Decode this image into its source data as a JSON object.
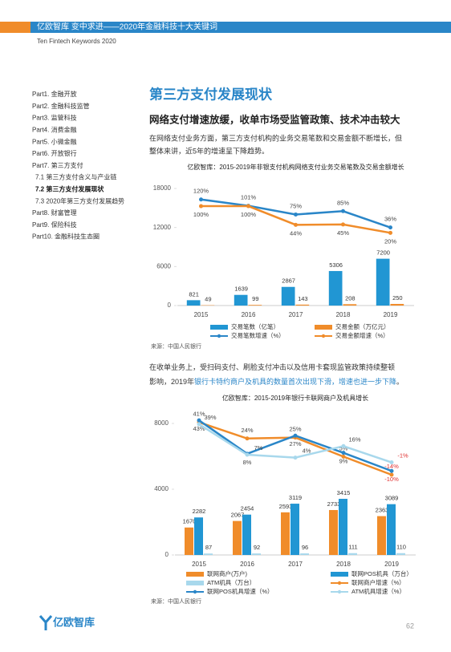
{
  "header": {
    "title": "亿欧智库  变中求进——2020年金融科技十大关键词",
    "subtitle": "Ten Fintech Keywords 2020"
  },
  "nav": [
    {
      "label": "Part1. 金融开放"
    },
    {
      "label": "Part2. 金融科技监管"
    },
    {
      "label": "Part3. 监管科技"
    },
    {
      "label": "Part4. 消费金融"
    },
    {
      "label": "Part5. 小微金融"
    },
    {
      "label": "Part6. 开放银行"
    },
    {
      "label": "Part7. 第三方支付"
    },
    {
      "label": "7.1 第三方支付含义与产业链",
      "sub": true
    },
    {
      "label": "7.2 第三方支付发展现状",
      "sub": true,
      "current": true
    },
    {
      "label": "7.3 2020年第三方支付发展趋势",
      "sub": true
    },
    {
      "label": "Part8. 财富管理"
    },
    {
      "label": "Part9. 保险科技"
    },
    {
      "label": "Part10. 金融科技生态圈"
    }
  ],
  "section": {
    "title": "第三方支付发展现状",
    "heading": "网络支付增速放缓，收单市场受监管政策、技术冲击较大"
  },
  "paragraph1": [
    "在网络支付业务方面，第三方支付机构的业务交易笔数和交易金额不断增长，但",
    "整体来讲，近5年的增速呈下降趋势。"
  ],
  "paragraph2": [
    [
      {
        "text": "在收单业务上，受扫码支付、刷脸支付冲击以及信用卡套现监管政策持续整顿"
      }
    ],
    [
      {
        "text": "影响，2019年"
      },
      {
        "text": "银行卡特约商户及机具的数量首次出现下滑，增速也进一步下降",
        "highlight": true
      },
      {
        "text": "。"
      }
    ]
  ],
  "footer": {
    "logo": "亿欧智库",
    "page": "62"
  },
  "chart_data": [
    {
      "type": "bar",
      "title": "亿欧智库：2015-2019年非银支付机构网络支付业务交易笔数及交易金额增长",
      "source": "来源：中国人民银行",
      "categories": [
        "2015",
        "2016",
        "2017",
        "2018",
        "2019"
      ],
      "ylim": [
        0,
        18000
      ],
      "yticks": [
        0,
        6000,
        12000,
        18000
      ],
      "y2lim": [
        -198,
        153
      ],
      "series": [
        {
          "name": "交易笔数（亿笔）",
          "type": "bar",
          "color": "#2196d3",
          "values": [
            821,
            1639,
            2867,
            5306,
            7200
          ]
        },
        {
          "name": "交易金额（万亿元）",
          "type": "bar",
          "color": "#f08c2a",
          "values": [
            49,
            99,
            143,
            208,
            250
          ]
        },
        {
          "name": "交易笔数增速（%）",
          "type": "line",
          "axis": "y2",
          "color": "#2a86c8",
          "values": [
            120,
            101,
            75,
            85,
            36
          ],
          "value_labels": [
            "120%",
            "101%",
            "75%",
            "85%",
            "36%"
          ]
        },
        {
          "name": "交易金额增速（%）",
          "type": "line",
          "axis": "y2",
          "color": "#f08c2a",
          "values": [
            100,
            100,
            44,
            45,
            20
          ],
          "value_labels": [
            "100%",
            "100%",
            "44%",
            "45%",
            "20%"
          ]
        }
      ]
    },
    {
      "type": "bar",
      "title": "亿欧智库：2015-2019年银行卡联网商户及机具增长",
      "source": "来源：中国人民银行",
      "categories": [
        "2015",
        "2016",
        "2017",
        "2018",
        "2019"
      ],
      "ylim": [
        0,
        9000
      ],
      "yticks": [
        0,
        4000,
        8000
      ],
      "y2lim": [
        -98,
        57
      ],
      "series": [
        {
          "name": "联网商户(万户)",
          "type": "bar",
          "color": "#f08c2a",
          "values": [
            1670,
            2067,
            2593,
            2733,
            2363
          ]
        },
        {
          "name": "联网POS机具（万台）",
          "type": "bar",
          "color": "#2196d3",
          "values": [
            2282,
            2454,
            3119,
            3415,
            3089
          ]
        },
        {
          "name": "ATM机具（万台）",
          "type": "bar",
          "color": "#a8d8ec",
          "values": [
            87,
            92,
            96,
            111,
            110
          ]
        },
        {
          "name": "联网商户增速（%）",
          "type": "line",
          "axis": "y2",
          "color": "#f08c2a",
          "values": [
            41,
            24,
            25,
            5,
            -14
          ],
          "value_labels": [
            "41%",
            "24%",
            "25%",
            "5%",
            "-14%"
          ]
        },
        {
          "name": "联网POS机具增速（%）",
          "type": "line",
          "axis": "y2",
          "color": "#2a86c8",
          "values": [
            43,
            8,
            27,
            9,
            -10
          ],
          "value_labels": [
            "43%",
            "8%",
            "27%",
            "9%",
            "-10%"
          ]
        },
        {
          "name": "ATM机具增速（%）",
          "type": "line",
          "axis": "y2",
          "color": "#a8d8ec",
          "values": [
            39,
            7,
            4,
            16,
            -1
          ],
          "value_labels": [
            "39%",
            "7%",
            "4%",
            "16%",
            "-1%"
          ]
        }
      ]
    }
  ]
}
